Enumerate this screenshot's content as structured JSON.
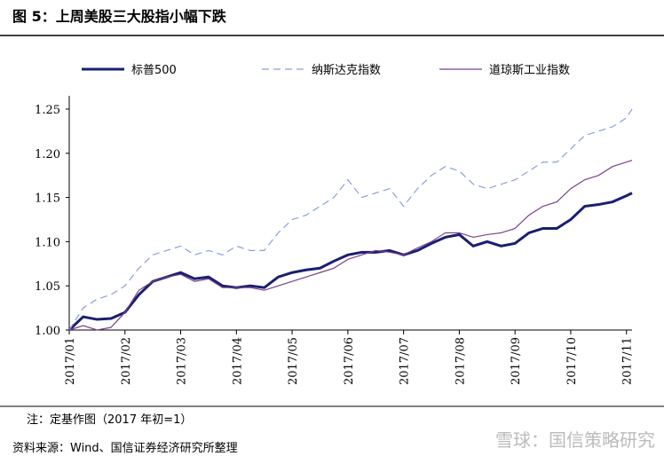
{
  "header": {
    "title": "图 5：上周美股三大股指小幅下跌"
  },
  "chart_data": {
    "type": "line",
    "x": [
      1,
      1.25,
      1.5,
      1.75,
      2,
      2.25,
      2.5,
      2.75,
      3,
      3.25,
      3.5,
      3.75,
      4,
      4.25,
      4.5,
      4.75,
      5,
      5.25,
      5.5,
      5.75,
      6,
      6.25,
      6.5,
      6.75,
      7,
      7.25,
      7.5,
      7.75,
      8,
      8.25,
      8.5,
      8.75,
      9,
      9.25,
      9.5,
      9.75,
      10,
      10.25,
      10.5,
      10.75,
      11,
      11.1
    ],
    "xlim": [
      1,
      11.1
    ],
    "xticks": [
      {
        "value": 1,
        "label": "2017/01"
      },
      {
        "value": 2,
        "label": "2017/02"
      },
      {
        "value": 3,
        "label": "2017/03"
      },
      {
        "value": 4,
        "label": "2017/04"
      },
      {
        "value": 5,
        "label": "2017/05"
      },
      {
        "value": 6,
        "label": "2017/06"
      },
      {
        "value": 7,
        "label": "2017/07"
      },
      {
        "value": 8,
        "label": "2017/08"
      },
      {
        "value": 9,
        "label": "2017/09"
      },
      {
        "value": 10,
        "label": "2017/10"
      },
      {
        "value": 11,
        "label": "2017/11"
      }
    ],
    "ylim": [
      1.0,
      1.26
    ],
    "yticks": [
      {
        "value": 1.0,
        "label": "1.00"
      },
      1.05,
      {
        "value": 1.1,
        "label": "1.10"
      },
      1.15,
      {
        "value": 1.2,
        "label": "1.20"
      },
      1.25
    ],
    "series": [
      {
        "name": "标普500",
        "color": "#1a1f71",
        "values": [
          1.0,
          1.015,
          1.012,
          1.013,
          1.02,
          1.04,
          1.055,
          1.06,
          1.065,
          1.058,
          1.06,
          1.05,
          1.048,
          1.05,
          1.048,
          1.06,
          1.065,
          1.068,
          1.07,
          1.078,
          1.085,
          1.088,
          1.088,
          1.09,
          1.085,
          1.09,
          1.098,
          1.105,
          1.108,
          1.095,
          1.1,
          1.095,
          1.098,
          1.11,
          1.115,
          1.115,
          1.125,
          1.14,
          1.142,
          1.145,
          1.152,
          1.155
        ]
      },
      {
        "name": "纳斯达克指数",
        "color": "#8c9ee0",
        "values": [
          1.0,
          1.025,
          1.035,
          1.04,
          1.05,
          1.07,
          1.085,
          1.09,
          1.095,
          1.085,
          1.09,
          1.085,
          1.095,
          1.09,
          1.09,
          1.11,
          1.125,
          1.13,
          1.14,
          1.15,
          1.17,
          1.15,
          1.155,
          1.16,
          1.14,
          1.16,
          1.175,
          1.185,
          1.18,
          1.165,
          1.16,
          1.165,
          1.17,
          1.18,
          1.19,
          1.19,
          1.205,
          1.22,
          1.225,
          1.23,
          1.24,
          1.25
        ]
      },
      {
        "name": "道琼斯工业指数",
        "color": "#7b3f8a",
        "values": [
          1.0,
          1.005,
          1.0,
          1.003,
          1.02,
          1.045,
          1.055,
          1.06,
          1.063,
          1.055,
          1.058,
          1.048,
          1.048,
          1.048,
          1.045,
          1.05,
          1.055,
          1.06,
          1.065,
          1.07,
          1.08,
          1.085,
          1.09,
          1.088,
          1.085,
          1.093,
          1.1,
          1.11,
          1.11,
          1.105,
          1.108,
          1.11,
          1.115,
          1.13,
          1.14,
          1.145,
          1.16,
          1.17,
          1.175,
          1.185,
          1.19,
          1.192
        ]
      }
    ]
  },
  "footer": {
    "note": "注：定基作图（2017 年初=1）",
    "source": "资料来源：Wind、国信证券经济研究所整理",
    "watermark": "雪球：国信策略研究"
  }
}
